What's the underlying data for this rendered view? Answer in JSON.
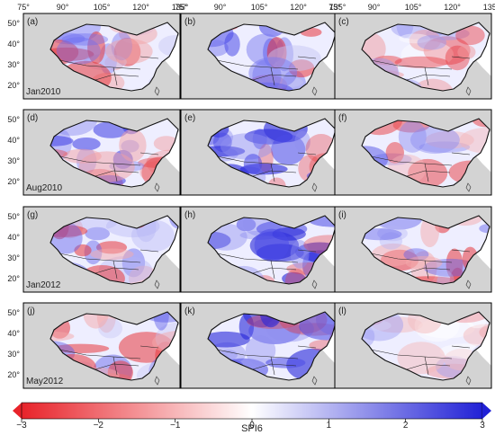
{
  "figure": {
    "lon_ticks": [
      "75°",
      "90°",
      "105°",
      "120°",
      "135°"
    ],
    "lat_ticks": [
      "50°",
      "40°",
      "30°",
      "20°"
    ],
    "panels": [
      {
        "letter": "(a)",
        "date": "Jan2010",
        "pattern": "mixed_red_south"
      },
      {
        "letter": "(b)",
        "date": "",
        "pattern": "blue_red_south"
      },
      {
        "letter": "(c)",
        "date": "",
        "pattern": "mixed"
      },
      {
        "letter": "(d)",
        "date": "Aug2010",
        "pattern": "blue_west"
      },
      {
        "letter": "(e)",
        "date": "",
        "pattern": "blue_strong"
      },
      {
        "letter": "(f)",
        "date": "",
        "pattern": "red_north"
      },
      {
        "letter": "(g)",
        "date": "Jan2012",
        "pattern": "red_mixed"
      },
      {
        "letter": "(h)",
        "date": "",
        "pattern": "blue_strong"
      },
      {
        "letter": "(i)",
        "date": "",
        "pattern": "red_mixed"
      },
      {
        "letter": "(j)",
        "date": "May2012",
        "pattern": "red_west"
      },
      {
        "letter": "(k)",
        "date": "",
        "pattern": "blue_strong"
      },
      {
        "letter": "(l)",
        "date": "",
        "pattern": "mixed_light"
      }
    ],
    "colorbar": {
      "label": "SPI6",
      "ticks": [
        "−3",
        "−2",
        "−1",
        "0",
        "1",
        "2",
        "3"
      ],
      "min": -3,
      "max": 3,
      "colors": {
        "dry": "#e8232a",
        "neutral": "#ffffff",
        "wet": "#2121d6"
      }
    },
    "land_color": "#d3d3d3",
    "ocean_color": "#ffffff"
  }
}
